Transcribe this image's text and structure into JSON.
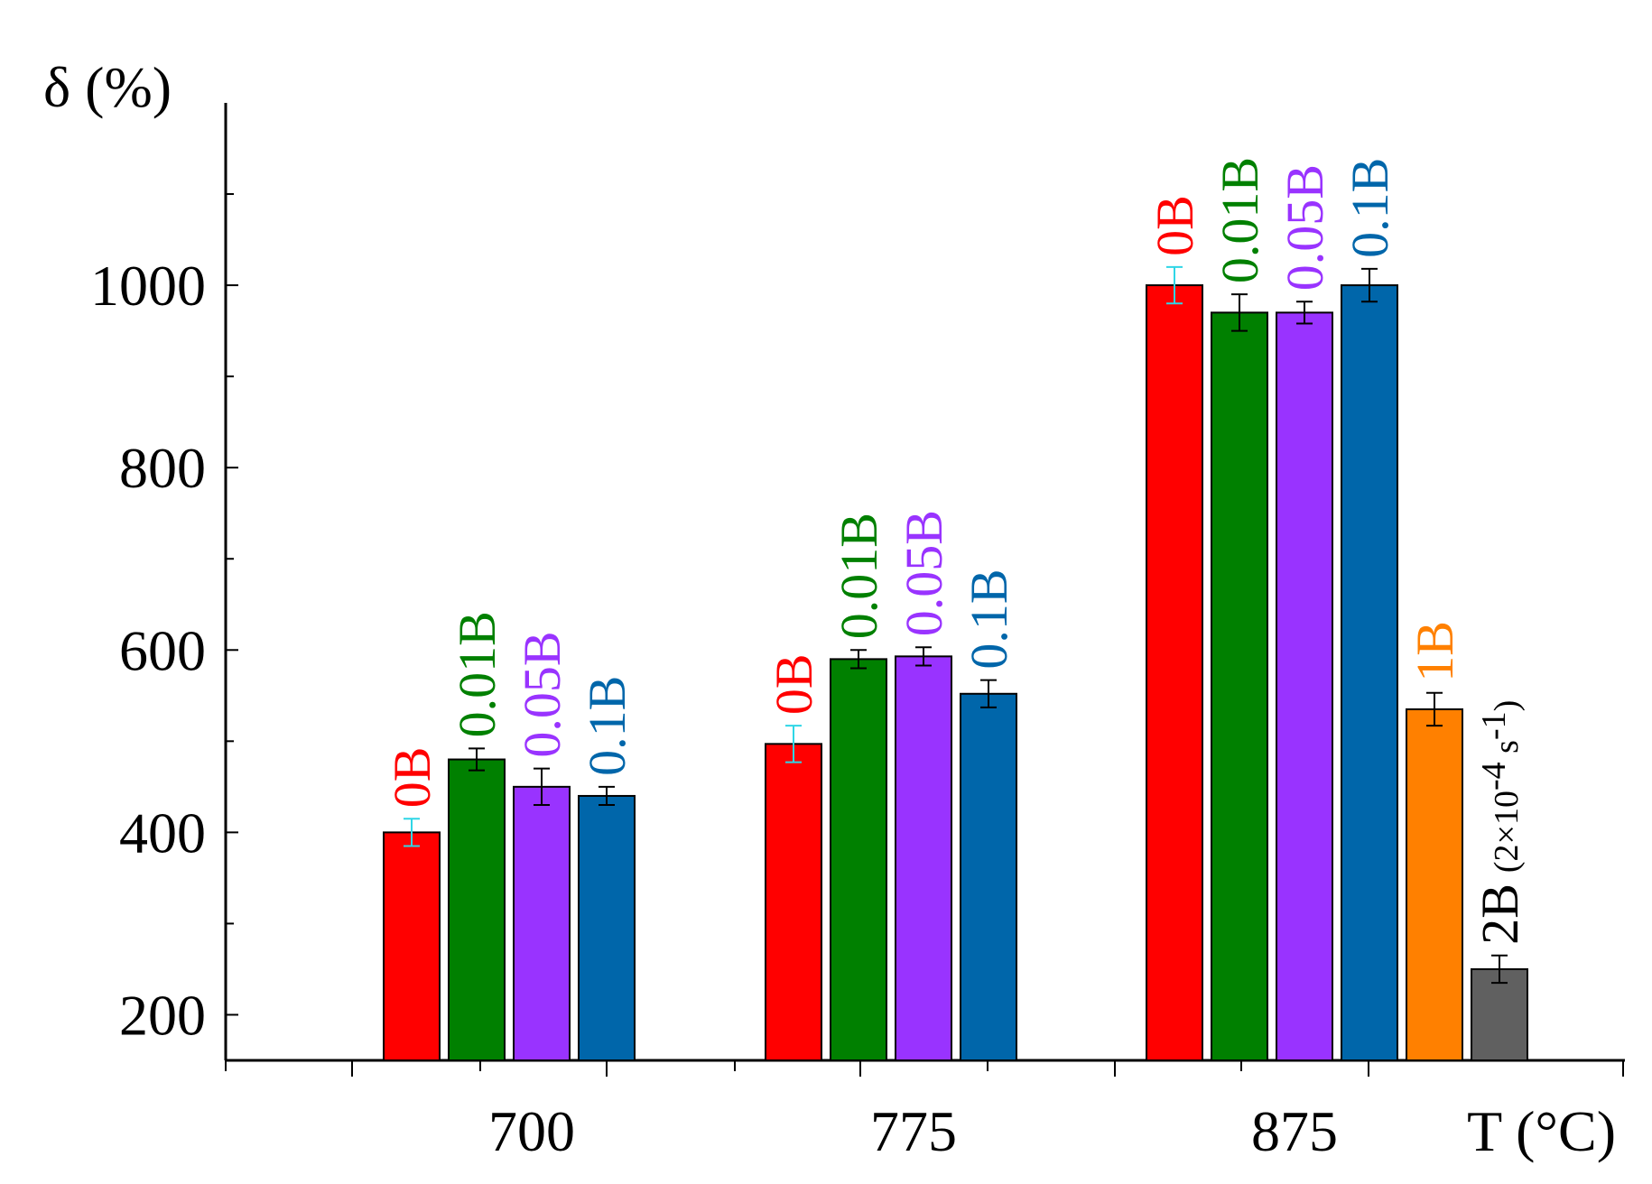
{
  "chart_data": {
    "type": "bar",
    "ylabel": "δ (%)",
    "xlabel": "T (°C)",
    "ylim": [
      150,
      1200
    ],
    "yticks": [
      200,
      400,
      600,
      800,
      1000
    ],
    "groups": [
      {
        "category": "700",
        "bars": [
          {
            "label": "0B",
            "value": 400,
            "error": 15,
            "color": "#ff0000",
            "error_color": "#2fd6e6"
          },
          {
            "label": "0.01B",
            "value": 480,
            "error": 12,
            "color": "#008000",
            "error_color": "#000000"
          },
          {
            "label": "0.05B",
            "value": 450,
            "error": 20,
            "color": "#9933ff",
            "error_color": "#000000"
          },
          {
            "label": "0.1B",
            "value": 440,
            "error": 10,
            "color": "#0066aa",
            "error_color": "#000000"
          }
        ]
      },
      {
        "category": "775",
        "bars": [
          {
            "label": "0B",
            "value": 497,
            "error": 20,
            "color": "#ff0000",
            "error_color": "#2fd6e6"
          },
          {
            "label": "0.01B",
            "value": 590,
            "error": 10,
            "color": "#008000",
            "error_color": "#000000"
          },
          {
            "label": "0.05B",
            "value": 593,
            "error": 10,
            "color": "#9933ff",
            "error_color": "#000000"
          },
          {
            "label": "0.1B",
            "value": 552,
            "error": 15,
            "color": "#0066aa",
            "error_color": "#000000"
          }
        ]
      },
      {
        "category": "875",
        "bars": [
          {
            "label": "0B",
            "value": 1000,
            "error": 20,
            "color": "#ff0000",
            "error_color": "#2fd6e6"
          },
          {
            "label": "0.01B",
            "value": 970,
            "error": 20,
            "color": "#008000",
            "error_color": "#000000"
          },
          {
            "label": "0.05B",
            "value": 970,
            "error": 12,
            "color": "#9933ff",
            "error_color": "#000000"
          },
          {
            "label": "0.1B",
            "value": 1000,
            "error": 18,
            "color": "#0066aa",
            "error_color": "#000000"
          },
          {
            "label": "1B",
            "value": 535,
            "error": 18,
            "color": "#ff8000",
            "error_color": "#000000"
          },
          {
            "label": "2B",
            "label_suffix": "(2×10",
            "label_exp1": "-4",
            "label_mid": " s",
            "label_exp2": "-1",
            "label_close": ")",
            "value": 250,
            "error": 15,
            "color": "#606060",
            "error_color": "#000000",
            "label_color": "#000000"
          }
        ]
      }
    ]
  }
}
